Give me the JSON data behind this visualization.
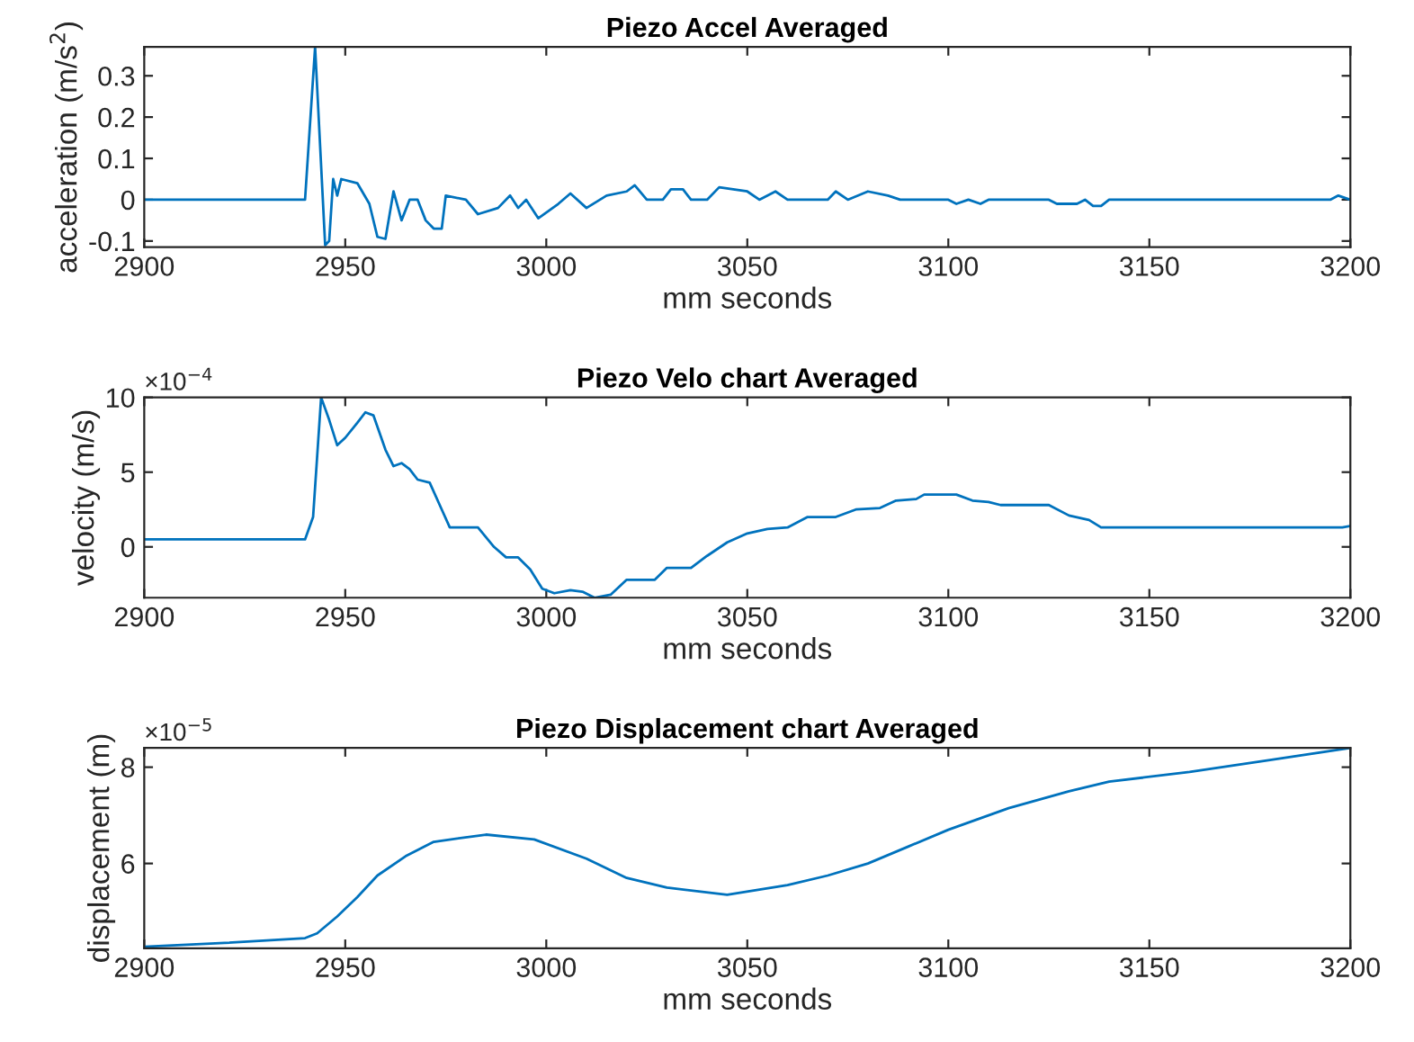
{
  "chart_data": [
    {
      "type": "line",
      "title": "Piezo Accel Averaged",
      "xlabel": "mm seconds",
      "ylabel": "acceleration (m/s$^{2}$)",
      "xlim": [
        2900,
        3200
      ],
      "xticks": [
        2900,
        2950,
        3000,
        3050,
        3100,
        3150,
        3200
      ],
      "ylim": [
        -0.115,
        0.37
      ],
      "yticks": [
        -0.1,
        0,
        0.1,
        0.2,
        0.3
      ],
      "grid": false,
      "series": [
        {
          "color": "#0072bd",
          "x": [
            2900,
            2940,
            2942.5,
            2945,
            2946,
            2947,
            2948,
            2949,
            2953,
            2956,
            2958,
            2960,
            2962,
            2964,
            2966,
            2968,
            2970,
            2972,
            2974,
            2975,
            2980,
            2983,
            2988,
            2991,
            2993,
            2995,
            2998,
            3003,
            3006,
            3010,
            3015,
            3020,
            3022,
            3025,
            3029,
            3031,
            3034,
            3036,
            3040,
            3043,
            3050,
            3053,
            3057,
            3060,
            3070,
            3072,
            3075,
            3080,
            3085,
            3088,
            3100,
            3102,
            3105,
            3108,
            3110,
            3125,
            3127,
            3132,
            3134,
            3136,
            3138,
            3140,
            3195,
            3197,
            3200
          ],
          "values": [
            0,
            0,
            0.37,
            -0.11,
            -0.1,
            0.05,
            0.01,
            0.05,
            0.04,
            -0.01,
            -0.09,
            -0.095,
            0.02,
            -0.05,
            0,
            0,
            -0.05,
            -0.07,
            -0.07,
            0.01,
            0,
            -0.035,
            -0.02,
            0.01,
            -0.02,
            0,
            -0.045,
            -0.01,
            0.015,
            -0.02,
            0.01,
            0.02,
            0.035,
            0,
            0,
            0.025,
            0.025,
            0,
            0,
            0.03,
            0.02,
            0,
            0.02,
            0,
            0,
            0.02,
            0,
            0.02,
            0.01,
            0,
            0,
            -0.01,
            0,
            -0.01,
            0,
            0,
            -0.01,
            -0.01,
            0,
            -0.015,
            -0.015,
            0,
            0,
            0.01,
            0
          ]
        }
      ]
    },
    {
      "type": "line",
      "title": "Piezo Velo chart Averaged",
      "xlabel": "mm seconds",
      "ylabel": "velocity (m/s)",
      "annotations": [
        "×10$^{−4}$"
      ],
      "xlim": [
        2900,
        3200
      ],
      "xticks": [
        2900,
        2950,
        3000,
        3050,
        3100,
        3150,
        3200
      ],
      "ylim": [
        -3.4,
        10
      ],
      "yticks": [
        0,
        5,
        10
      ],
      "grid": false,
      "series": [
        {
          "color": "#0072bd",
          "x": [
            2900,
            2940,
            2942,
            2944,
            2946,
            2948,
            2950,
            2953,
            2955,
            2957,
            2960,
            2962,
            2964,
            2966,
            2968,
            2971,
            2974,
            2976,
            2983,
            2987,
            2990,
            2993,
            2996,
            2999,
            3002,
            3006,
            3009,
            3012,
            3016,
            3020,
            3023,
            3027,
            3030,
            3036,
            3040,
            3045,
            3050,
            3055,
            3060,
            3065,
            3072,
            3077,
            3083,
            3087,
            3092,
            3094,
            3102,
            3106,
            3110,
            3113,
            3125,
            3130,
            3135,
            3138,
            3198,
            3200
          ],
          "values": [
            0.5,
            0.5,
            2,
            10,
            8.5,
            6.8,
            7.3,
            8.3,
            9,
            8.8,
            6.5,
            5.4,
            5.6,
            5.2,
            4.5,
            4.3,
            2.5,
            1.3,
            1.3,
            0,
            -0.7,
            -0.7,
            -1.5,
            -2.8,
            -3.1,
            -2.9,
            -3,
            -3.4,
            -3.2,
            -2.2,
            -2.2,
            -2.2,
            -1.4,
            -1.4,
            -0.6,
            0.3,
            0.9,
            1.2,
            1.3,
            2,
            2,
            2.5,
            2.6,
            3.1,
            3.2,
            3.5,
            3.5,
            3.1,
            3,
            2.8,
            2.8,
            2.1,
            1.8,
            1.3,
            1.3,
            1.4
          ]
        }
      ]
    },
    {
      "type": "line",
      "title": "Piezo Displacement chart Averaged",
      "xlabel": "mm seconds",
      "ylabel": "displacement (m)",
      "annotations": [
        "×10$^{−5}$"
      ],
      "xlim": [
        2900,
        3200
      ],
      "xticks": [
        2900,
        2950,
        3000,
        3050,
        3100,
        3150,
        3200
      ],
      "ylim": [
        4.24,
        8.4
      ],
      "yticks": [
        6,
        8
      ],
      "grid": false,
      "series": [
        {
          "color": "#0072bd",
          "x": [
            2900,
            2920,
            2940,
            2943,
            2948,
            2953,
            2958,
            2965,
            2972,
            2985,
            2997,
            3010,
            3020,
            3030,
            3045,
            3060,
            3070,
            3080,
            3090,
            3100,
            3115,
            3130,
            3140,
            3160,
            3180,
            3200
          ],
          "values": [
            4.27,
            4.35,
            4.45,
            4.55,
            4.9,
            5.3,
            5.75,
            6.15,
            6.45,
            6.6,
            6.5,
            6.1,
            5.7,
            5.5,
            5.35,
            5.55,
            5.75,
            6,
            6.35,
            6.7,
            7.15,
            7.5,
            7.7,
            7.9,
            8.15,
            8.4
          ]
        }
      ]
    }
  ]
}
